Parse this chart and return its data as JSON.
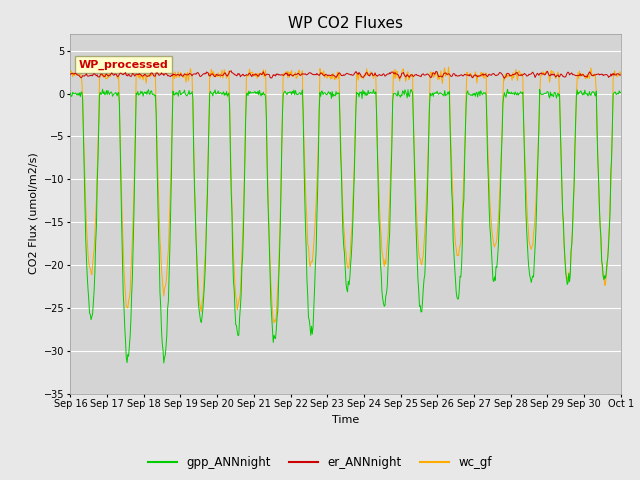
{
  "title": "WP CO2 Fluxes",
  "xlabel": "Time",
  "ylabel": "CO2 Flux (umol/m2/s)",
  "ylim": [
    -35,
    7
  ],
  "yticks": [
    5,
    0,
    -5,
    -10,
    -15,
    -20,
    -25,
    -30,
    -35
  ],
  "background_color": "#e8e8e8",
  "plot_bg_color": "#d4d4d4",
  "grid_color": "white",
  "annotation_text": "WP_processed",
  "annotation_color": "#cc0000",
  "annotation_bg": "#ffffcc",
  "line_colors": {
    "gpp": "#00cc00",
    "er": "#cc0000",
    "wc": "#ffaa00"
  },
  "legend_labels": [
    "gpp_ANNnight",
    "er_ANNnight",
    "wc_gf"
  ],
  "n_days": 15,
  "n_points_per_day": 48,
  "x_tick_labels": [
    "Sep 16",
    "Sep 17",
    "Sep 18",
    "Sep 19",
    "Sep 20",
    "Sep 21",
    "Sep 22",
    "Sep 23",
    "Sep 24",
    "Sep 25",
    "Sep 26",
    "Sep 27",
    "Sep 28",
    "Sep 29",
    "Sep 30",
    "Oct 1"
  ],
  "er_base": 2.2,
  "title_fontsize": 11,
  "label_fontsize": 8,
  "tick_fontsize": 7,
  "annot_fontsize": 8
}
